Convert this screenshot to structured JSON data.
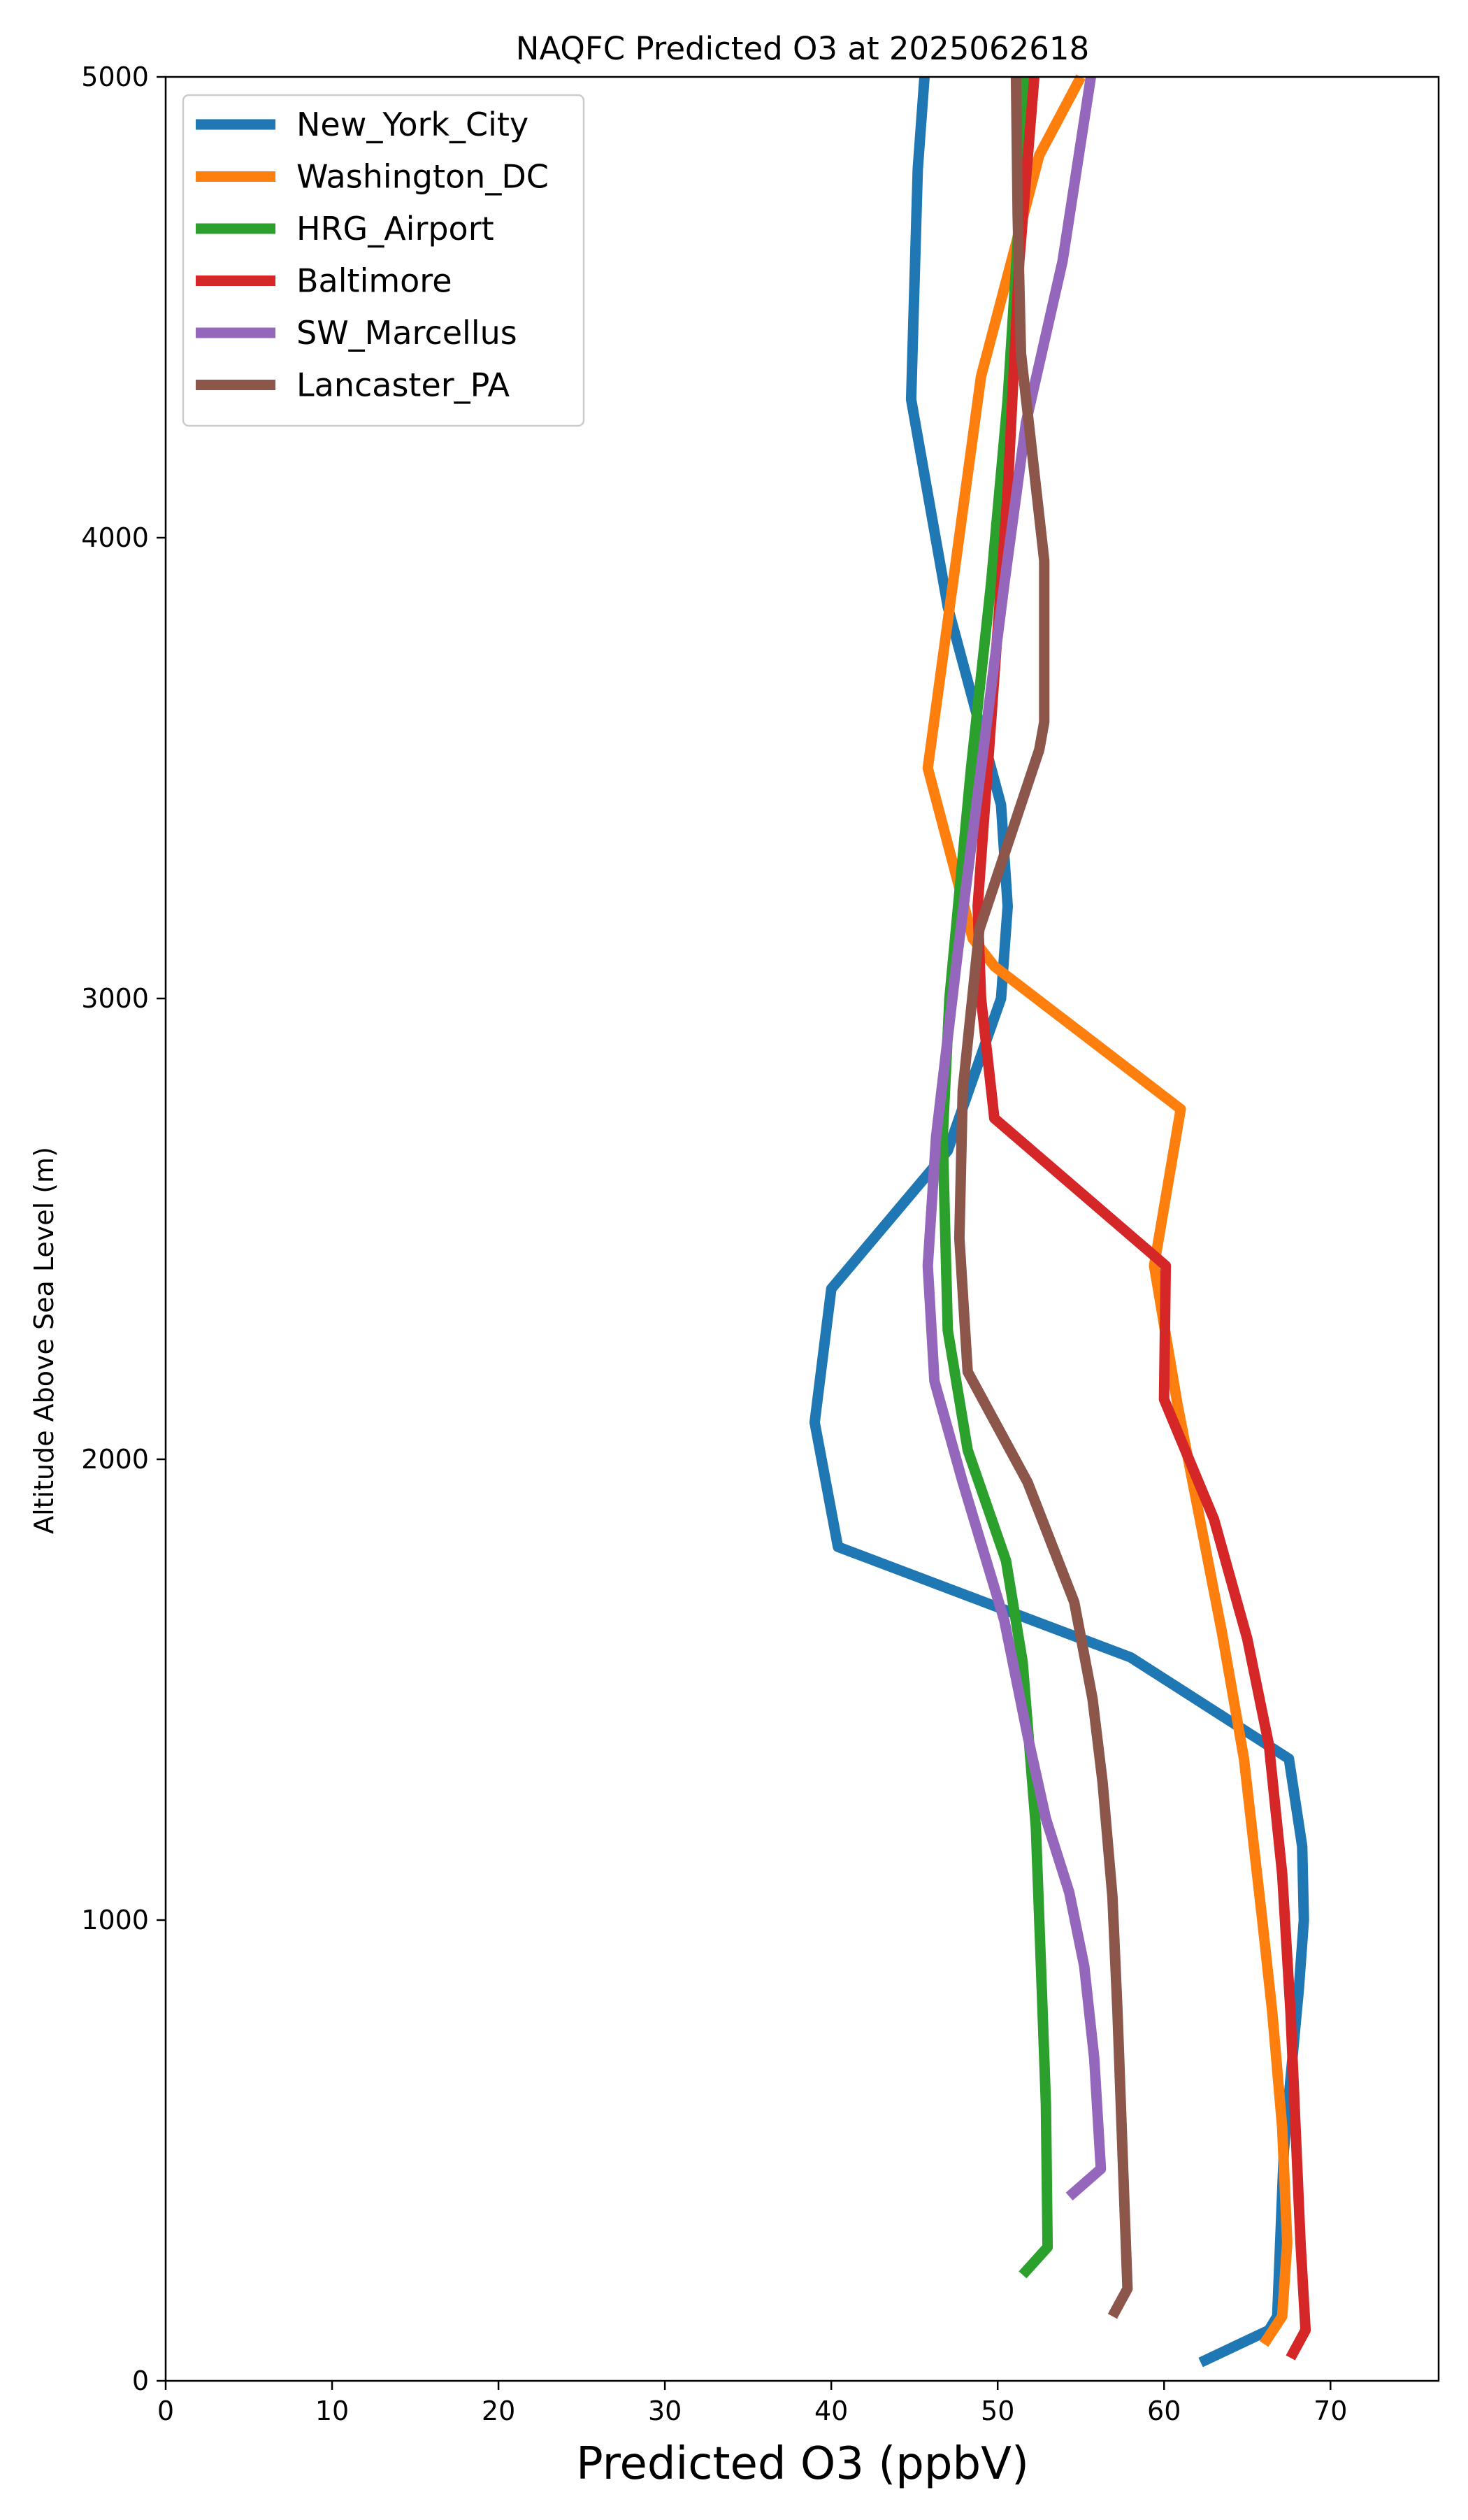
{
  "chart_data": {
    "type": "line",
    "title": "NAQFC Predicted O3 at 2025062618",
    "xlabel": "Predicted O3 (ppbV)",
    "ylabel": "Altitude Above Sea Level (m)",
    "xlim": [
      0,
      76.5
    ],
    "ylim": [
      0,
      5000
    ],
    "xticks": [
      0,
      10,
      20,
      30,
      40,
      50,
      60,
      70
    ],
    "yticks": [
      0,
      1000,
      2000,
      3000,
      4000,
      5000
    ],
    "legend_position": "upper-left",
    "grid": false,
    "series": [
      {
        "name": "New_York_City",
        "color": "#1f77b4",
        "points": [
          [
            62.2,
            40
          ],
          [
            66.3,
            110
          ],
          [
            66.8,
            140
          ],
          [
            67.2,
            500
          ],
          [
            68.1,
            850
          ],
          [
            68.4,
            1000
          ],
          [
            68.3,
            1160
          ],
          [
            67.5,
            1350
          ],
          [
            58.0,
            1570
          ],
          [
            40.4,
            1810
          ],
          [
            39.0,
            2080
          ],
          [
            40.0,
            2370
          ],
          [
            47.0,
            2670
          ],
          [
            50.2,
            3000
          ],
          [
            50.6,
            3200
          ],
          [
            50.2,
            3420
          ],
          [
            47.0,
            3850
          ],
          [
            44.8,
            4300
          ],
          [
            45.2,
            4800
          ],
          [
            45.6,
            5000
          ]
        ]
      },
      {
        "name": "Washington_DC",
        "color": "#ff7f0e",
        "points": [
          [
            66.0,
            80
          ],
          [
            67.1,
            140
          ],
          [
            67.4,
            300
          ],
          [
            67.1,
            550
          ],
          [
            66.5,
            800
          ],
          [
            65.9,
            1000
          ],
          [
            64.8,
            1350
          ],
          [
            63.5,
            1620
          ],
          [
            60.8,
            2120
          ],
          [
            59.4,
            2420
          ],
          [
            61.0,
            2760
          ],
          [
            49.8,
            3070
          ],
          [
            48.5,
            3130
          ],
          [
            45.8,
            3500
          ],
          [
            49.0,
            4350
          ],
          [
            52.5,
            4830
          ],
          [
            55.0,
            5000
          ]
        ]
      },
      {
        "name": "HRG_Airport",
        "color": "#2ca02c",
        "points": [
          [
            51.5,
            230
          ],
          [
            53.0,
            290
          ],
          [
            52.9,
            600
          ],
          [
            52.6,
            900
          ],
          [
            52.3,
            1200
          ],
          [
            51.5,
            1560
          ],
          [
            50.5,
            1780
          ],
          [
            48.2,
            2020
          ],
          [
            47.0,
            2280
          ],
          [
            46.7,
            2700
          ],
          [
            47.1,
            3000
          ],
          [
            48.4,
            3500
          ],
          [
            49.6,
            3900
          ],
          [
            50.6,
            4300
          ],
          [
            51.3,
            4700
          ],
          [
            51.7,
            5000
          ]
        ]
      },
      {
        "name": "Baltimore",
        "color": "#d62728",
        "points": [
          [
            67.6,
            50
          ],
          [
            68.5,
            110
          ],
          [
            68.2,
            300
          ],
          [
            67.9,
            550
          ],
          [
            67.6,
            800
          ],
          [
            67.1,
            1100
          ],
          [
            66.3,
            1380
          ],
          [
            65.0,
            1610
          ],
          [
            63.0,
            1870
          ],
          [
            60.0,
            2130
          ],
          [
            60.1,
            2420
          ],
          [
            49.8,
            2740
          ],
          [
            49.0,
            3000
          ],
          [
            48.8,
            3200
          ],
          [
            49.6,
            3600
          ],
          [
            50.6,
            4100
          ],
          [
            51.3,
            4600
          ],
          [
            52.2,
            5000
          ]
        ]
      },
      {
        "name": "SW_Marcellus",
        "color": "#9467bd",
        "points": [
          [
            54.3,
            400
          ],
          [
            56.2,
            460
          ],
          [
            55.8,
            700
          ],
          [
            55.2,
            900
          ],
          [
            54.3,
            1060
          ],
          [
            52.9,
            1220
          ],
          [
            51.8,
            1400
          ],
          [
            50.4,
            1650
          ],
          [
            47.9,
            1950
          ],
          [
            46.2,
            2170
          ],
          [
            45.8,
            2420
          ],
          [
            46.3,
            2700
          ],
          [
            47.6,
            3100
          ],
          [
            49.0,
            3500
          ],
          [
            50.4,
            3900
          ],
          [
            51.7,
            4250
          ],
          [
            53.9,
            4600
          ],
          [
            55.6,
            5000
          ]
        ]
      },
      {
        "name": "Lancaster_PA",
        "color": "#8c564b",
        "points": [
          [
            56.9,
            140
          ],
          [
            57.8,
            200
          ],
          [
            57.5,
            500
          ],
          [
            57.2,
            800
          ],
          [
            56.9,
            1050
          ],
          [
            56.3,
            1300
          ],
          [
            55.7,
            1480
          ],
          [
            54.6,
            1690
          ],
          [
            51.8,
            1950
          ],
          [
            48.2,
            2190
          ],
          [
            47.7,
            2480
          ],
          [
            47.9,
            2800
          ],
          [
            48.9,
            3150
          ],
          [
            52.5,
            3540
          ],
          [
            52.8,
            3600
          ],
          [
            52.8,
            3950
          ],
          [
            51.4,
            4400
          ],
          [
            51.2,
            4700
          ],
          [
            51.1,
            5000
          ]
        ]
      }
    ]
  }
}
